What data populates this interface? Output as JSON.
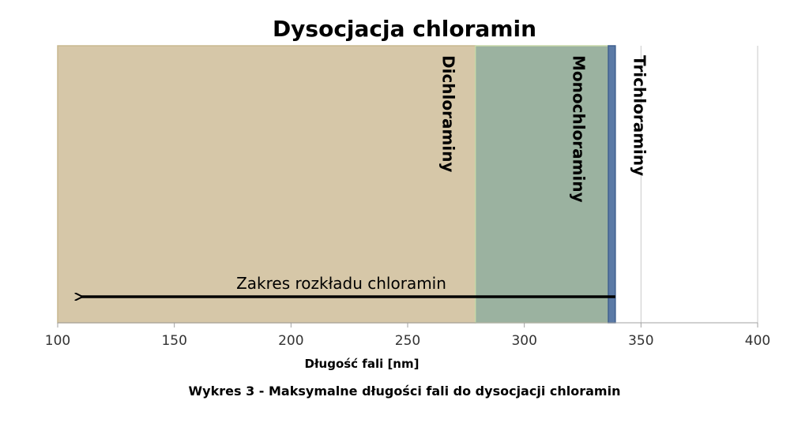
{
  "chart_data": {
    "type": "area",
    "title": "Dysocjacja chloramin",
    "xlabel": "Długość fali [nm]",
    "xlim": [
      100,
      400
    ],
    "xticks": [
      100,
      150,
      200,
      250,
      300,
      350,
      400
    ],
    "grid": true,
    "regions": [
      {
        "name": "Dichloraminy",
        "x_start": 100,
        "x_end": 279,
        "color": "#D6C7A8",
        "label_x": 265
      },
      {
        "name": "Monochloraminy",
        "x_start": 279,
        "x_end": 336,
        "color": "#9BB2A0",
        "label_x": 321
      },
      {
        "name": "Trichloraminy",
        "x_start": 336,
        "x_end": 339,
        "color": "#5B7AA6",
        "label_x": 347
      }
    ],
    "arrow": {
      "label": "Zakres rozkładu chloramin",
      "from_x": 339,
      "to_x": 110
    }
  },
  "caption": "Wykres 3 - Maksymalne długości fali do dysocjacji chloramin"
}
